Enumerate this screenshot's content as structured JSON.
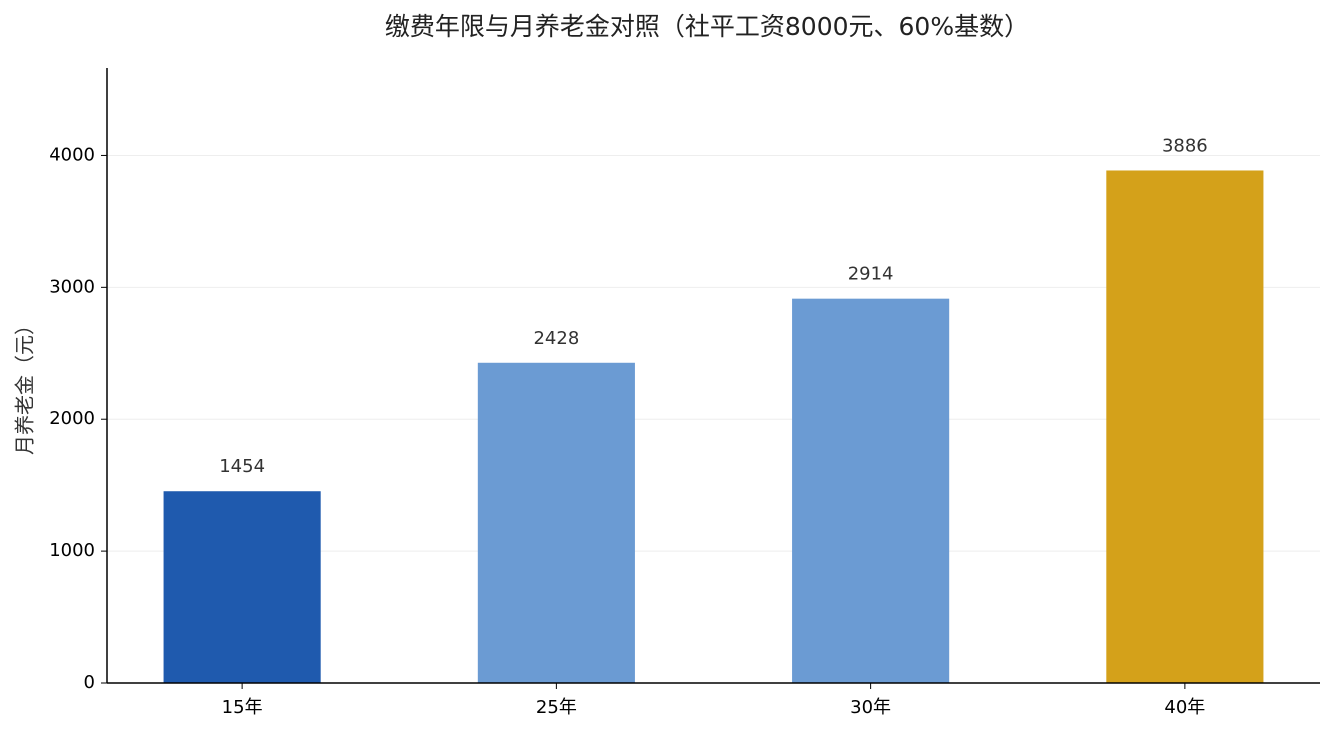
{
  "chart_data": {
    "type": "bar",
    "title": "缴费年限与月养老金对照（社平工资8000元、60%基数）",
    "y_label": "月养老金（元）",
    "categories": [
      "15年",
      "25年",
      "30年",
      "40年"
    ],
    "values": [
      1454,
      2428,
      2914,
      3886
    ],
    "colors": [
      "#1f5aae",
      "#6b9bd3",
      "#6b9bd3",
      "#d4a11a"
    ],
    "ylim": [
      0,
      4663
    ],
    "yticks": [
      0,
      1000,
      2000,
      3000,
      4000
    ],
    "grid": true
  }
}
